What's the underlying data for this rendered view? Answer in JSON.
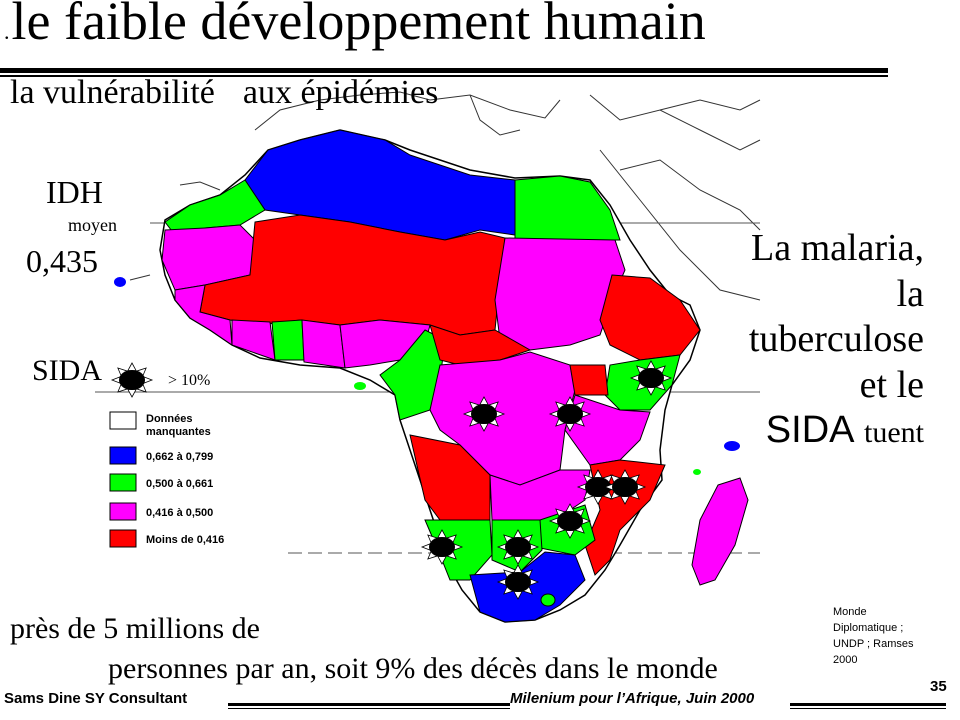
{
  "slide": {
    "title_dot": ".",
    "title": "le faible développement humain",
    "subtitle_part1": "la vulnérabilité",
    "subtitle_part2": "aux épidémies",
    "idh_label": "IDH",
    "idh_sub": "moyen",
    "idh_value": "0,435",
    "sida_label": "SIDA",
    "sida_threshold": "> 10%",
    "malaria_lines": [
      "La malaria,",
      "la",
      "tuberculose",
      "et le",
      "SIDA"
    ],
    "malaria_last_word": "tuent",
    "deaths_line1": "près de 5 millions de",
    "deaths_line2": "personnes par an, soit 9% des décès dans le monde",
    "source": "Monde Diplomatique ; UNDP ; Ramses 2000",
    "footer_left": "Sams Dine SY Consultant",
    "footer_right": "Milenium pour l’Afrique, Juin 2000",
    "page_number": "35"
  },
  "legend": [
    {
      "label": "Données manquantes",
      "color": "#ffffff"
    },
    {
      "label": "0,662 à 0,799",
      "color": "#0000ff"
    },
    {
      "label": "0,500 à 0,661",
      "color": "#00ff00"
    },
    {
      "label": "0,416 à 0,500",
      "color": "#ff00ff"
    },
    {
      "label": "Moins de 0,416",
      "color": "#ff0000"
    }
  ],
  "colors": {
    "blue": "#0000ff",
    "green": "#00ff00",
    "magenta": "#ff00ff",
    "red": "#ff0000"
  }
}
